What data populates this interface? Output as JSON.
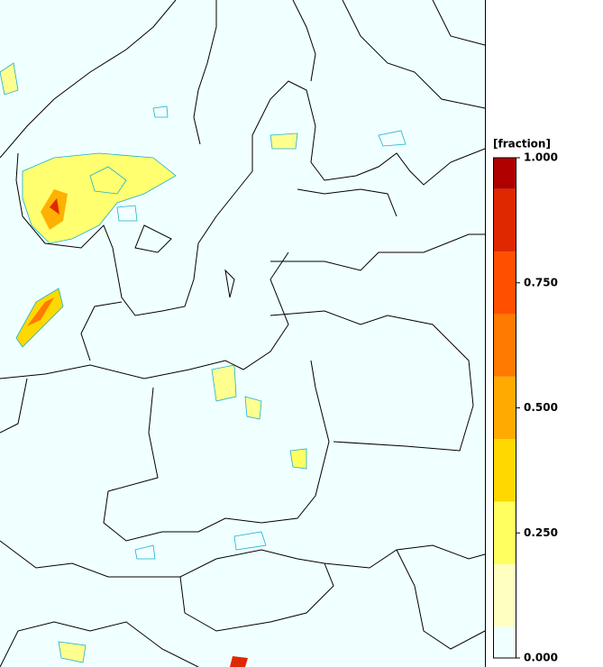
{
  "colorbar": {
    "title": "[fraction]",
    "range": [
      0,
      1
    ],
    "ticks": [
      {
        "value": 0,
        "label": "0.000"
      },
      {
        "value": 0.25,
        "label": "0.250"
      },
      {
        "value": 0.5,
        "label": "0.500"
      },
      {
        "value": 0.75,
        "label": "0.750"
      },
      {
        "value": 1,
        "label": "1.000"
      }
    ],
    "levels": [
      0,
      0.0625,
      0.1875,
      0.3125,
      0.4375,
      0.5625,
      0.6875,
      0.8125,
      0.9375,
      1
    ],
    "colors": [
      "#f0ffff",
      "#ffffc0",
      "#ffff60",
      "#ffd800",
      "#ffaa00",
      "#ff7a00",
      "#ff5000",
      "#e02800",
      "#b00000"
    ]
  }
}
